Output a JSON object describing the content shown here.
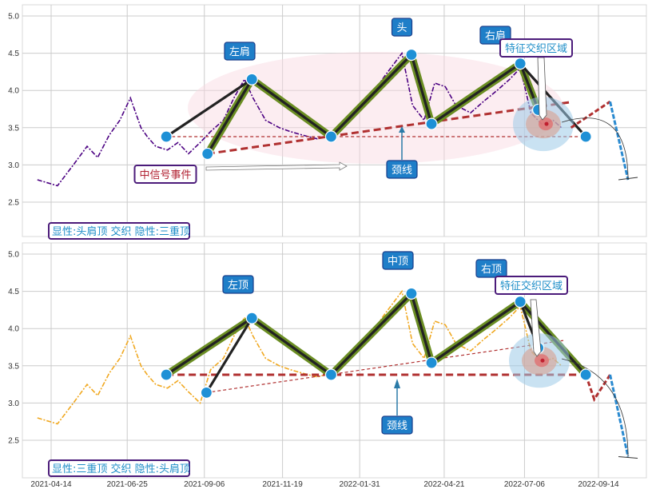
{
  "colors": {
    "grid": "#cccccc",
    "panel_border": "#d8d8d8",
    "top_series": "#4b0082",
    "bottom_series": "#f0a820",
    "marker": "#1e90d6",
    "skeleton_green": "#6b8e23",
    "skeleton_dark": "#222222",
    "neckline": "#b03030",
    "annotation_bg": "#1e7ec8",
    "legend_border": "#4b1b7a",
    "legend_text": "#1e8ec8",
    "event_text": "#b02030"
  },
  "x_ticks": [
    "2021-04-14",
    "2021-06-25",
    "2021-09-06",
    "2021-11-19",
    "2022-01-31",
    "2022-04-21",
    "2022-07-06",
    "2022-09-14"
  ],
  "chart_data": [
    {
      "type": "line",
      "panel": "top",
      "ylim": [
        2.1,
        5.2
      ],
      "y_ticks": [
        "2.5",
        "3.0",
        "3.5",
        "4.0",
        "4.5",
        "5.0"
      ],
      "series": [
        {
          "x": [
            "2021-04-01",
            "2021-04-20",
            "2021-05-05",
            "2021-05-18",
            "2021-05-28",
            "2021-06-08",
            "2021-06-18",
            "2021-06-28",
            "2021-07-08",
            "2021-07-14",
            "2021-07-22",
            "2021-08-02",
            "2021-08-12",
            "2021-08-22",
            "2021-09-02",
            "2021-09-12",
            "2021-09-24",
            "2021-10-04",
            "2021-10-14",
            "2021-10-22",
            "2021-11-03",
            "2021-11-16",
            "2021-11-26",
            "2021-12-08",
            "2021-12-22",
            "2022-01-04",
            "2022-01-18",
            "2022-02-02",
            "2022-02-14",
            "2022-02-24",
            "2022-03-04",
            "2022-03-12",
            "2022-03-22",
            "2022-04-02",
            "2022-04-12",
            "2022-04-22",
            "2022-05-02",
            "2022-05-16",
            "2022-05-28",
            "2022-06-10",
            "2022-06-22",
            "2022-07-02",
            "2022-07-12",
            "2022-07-22",
            "2022-08-02",
            "2022-08-10"
          ],
          "y": [
            2.8,
            2.72,
            3.0,
            3.25,
            3.1,
            3.4,
            3.6,
            3.9,
            3.5,
            3.38,
            3.25,
            3.2,
            3.3,
            3.15,
            3.3,
            3.45,
            3.6,
            3.9,
            4.15,
            3.9,
            3.6,
            3.5,
            3.45,
            3.4,
            3.35,
            3.4,
            3.55,
            3.85,
            4.0,
            4.2,
            4.35,
            4.5,
            3.8,
            3.6,
            4.1,
            4.05,
            3.8,
            3.7,
            3.85,
            4.0,
            4.15,
            4.3,
            3.7,
            3.55,
            3.6,
            3.5
          ]
        }
      ],
      "pattern_points": [
        {
          "x": "2021-08-01",
          "y": 3.38
        },
        {
          "x": "2021-09-09",
          "y": 3.15
        },
        {
          "x": "2021-10-21",
          "y": 4.15
        },
        {
          "x": "2022-01-04",
          "y": 3.38
        },
        {
          "x": "2022-03-21",
          "y": 4.48
        },
        {
          "x": "2022-04-09",
          "y": 3.55
        },
        {
          "x": "2022-07-02",
          "y": 4.36
        },
        {
          "x": "2022-07-19",
          "y": 3.74
        },
        {
          "x": "2022-09-02",
          "y": 3.38
        }
      ],
      "forecast": [
        {
          "x": "2022-08-19",
          "y": 3.5
        },
        {
          "x": "2022-09-25",
          "y": 3.85
        },
        {
          "x": "2022-10-12",
          "y": 2.8
        }
      ],
      "labels": [
        "左肩",
        "头",
        "右肩",
        "颈线",
        "特征交织区域",
        "中信号事件"
      ],
      "legend": "显性:头肩顶 交织 隐性:三重顶"
    },
    {
      "type": "line",
      "panel": "bottom",
      "ylim": [
        2.1,
        5.2
      ],
      "y_ticks": [
        "2.5",
        "3.0",
        "3.5",
        "4.0",
        "4.5",
        "5.0"
      ],
      "series": [
        {
          "x": [
            "2021-04-01",
            "2021-04-20",
            "2021-05-05",
            "2021-05-18",
            "2021-05-28",
            "2021-06-08",
            "2021-06-18",
            "2021-06-28",
            "2021-07-08",
            "2021-07-14",
            "2021-07-22",
            "2021-08-02",
            "2021-08-12",
            "2021-08-22",
            "2021-09-02",
            "2021-09-12",
            "2021-09-24",
            "2021-10-04",
            "2021-10-14",
            "2021-10-22",
            "2021-11-03",
            "2021-11-16",
            "2021-11-26",
            "2021-12-08",
            "2021-12-22",
            "2022-01-04",
            "2022-01-18",
            "2022-02-02",
            "2022-02-14",
            "2022-02-24",
            "2022-03-04",
            "2022-03-12",
            "2022-03-22",
            "2022-04-02",
            "2022-04-12",
            "2022-04-22",
            "2022-05-02",
            "2022-05-16",
            "2022-05-28",
            "2022-06-10",
            "2022-06-22",
            "2022-07-02",
            "2022-07-12",
            "2022-07-22",
            "2022-08-02",
            "2022-08-10"
          ],
          "y": [
            2.8,
            2.72,
            3.0,
            3.25,
            3.1,
            3.4,
            3.6,
            3.9,
            3.5,
            3.38,
            3.25,
            3.2,
            3.3,
            3.15,
            3.0,
            3.45,
            3.6,
            3.9,
            4.15,
            3.9,
            3.6,
            3.5,
            3.45,
            3.4,
            3.35,
            3.4,
            3.55,
            3.85,
            4.0,
            4.2,
            4.35,
            4.5,
            3.8,
            3.6,
            4.1,
            4.05,
            3.8,
            3.7,
            3.85,
            4.0,
            4.15,
            4.3,
            3.7,
            3.55,
            3.6,
            3.5
          ]
        }
      ],
      "pattern_points": [
        {
          "x": "2021-08-01",
          "y": 3.38
        },
        {
          "x": "2021-09-08",
          "y": 3.14
        },
        {
          "x": "2021-10-21",
          "y": 4.14
        },
        {
          "x": "2022-01-04",
          "y": 3.38
        },
        {
          "x": "2022-03-21",
          "y": 4.47
        },
        {
          "x": "2022-04-09",
          "y": 3.54
        },
        {
          "x": "2022-07-02",
          "y": 4.36
        },
        {
          "x": "2022-07-19",
          "y": 3.74
        },
        {
          "x": "2022-09-02",
          "y": 3.38
        }
      ],
      "forecast": [
        {
          "x": "2022-09-02",
          "y": 3.38
        },
        {
          "x": "2022-09-10",
          "y": 3.05
        },
        {
          "x": "2022-09-25",
          "y": 3.38
        },
        {
          "x": "2022-10-12",
          "y": 2.28
        }
      ],
      "labels": [
        "左顶",
        "中顶",
        "右顶",
        "颈线",
        "特征交织区域"
      ],
      "legend": "显性:三重顶 交织 隐性:头肩顶"
    }
  ]
}
